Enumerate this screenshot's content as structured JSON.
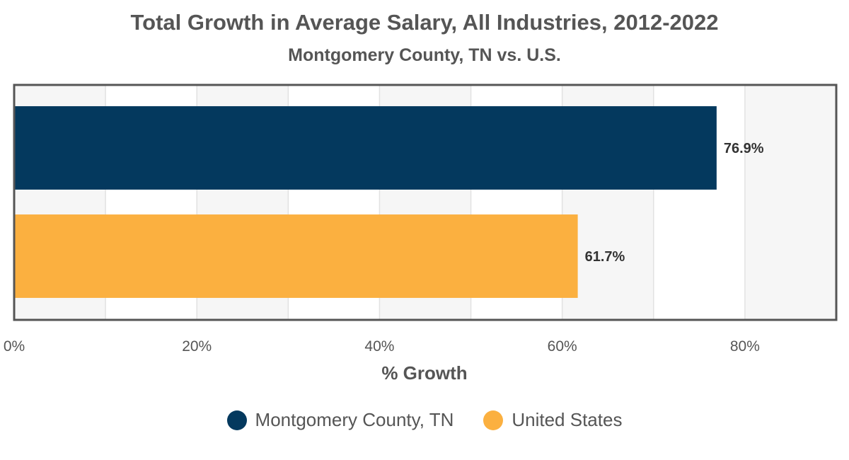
{
  "chart_data": {
    "type": "bar",
    "orientation": "horizontal",
    "title": "Total Growth in Average Salary, All Industries, 2012-2022",
    "subtitle": "Montgomery County, TN vs. U.S.",
    "xlabel": "% Growth",
    "ylabel": "",
    "xlim": [
      0,
      90
    ],
    "ticks": [
      {
        "value": 0,
        "label": "0%"
      },
      {
        "value": 20,
        "label": "20%"
      },
      {
        "value": 40,
        "label": "40%"
      },
      {
        "value": 60,
        "label": "60%"
      },
      {
        "value": 80,
        "label": "80%"
      }
    ],
    "grid": true,
    "legend_position": "bottom",
    "series": [
      {
        "name": "Montgomery County, TN",
        "value": 76.9,
        "label": "76.9%",
        "color": "#04395e"
      },
      {
        "name": "United States",
        "value": 61.7,
        "label": "61.7%",
        "color": "#fbb040"
      }
    ]
  }
}
